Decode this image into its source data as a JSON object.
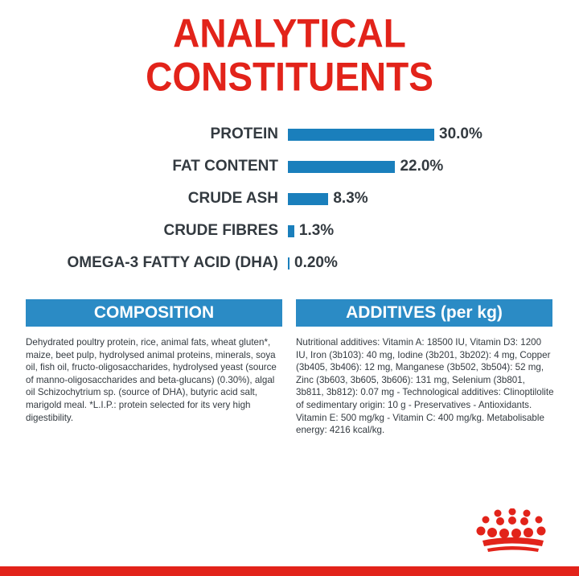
{
  "title": {
    "line1": "ANALYTICAL",
    "line2": "CONSTITUENTS"
  },
  "constituents": [
    {
      "label": "PROTEIN",
      "value": 30.0,
      "display": "30.0%"
    },
    {
      "label": "FAT CONTENT",
      "value": 22.0,
      "display": "22.0%"
    },
    {
      "label": "CRUDE ASH",
      "value": 8.3,
      "display": "8.3%"
    },
    {
      "label": "CRUDE FIBRES",
      "value": 1.3,
      "display": "1.3%"
    },
    {
      "label": "OMEGA-3 FATTY ACID (DHA)",
      "value": 0.2,
      "display": "0.20%"
    }
  ],
  "composition": {
    "heading": "COMPOSITION",
    "text": "Dehydrated poultry protein, rice, animal fats, wheat gluten*, maize, beet pulp, hydrolysed animal proteins, minerals, soya oil, fish oil, fructo-oligosaccharides, hydrolysed yeast (source of manno-oligosaccharides and beta-glucans) (0.30%), algal oil Schizochytrium sp. (source of DHA), butyric acid salt, marigold meal. *L.I.P.: protein selected for its very high digestibility."
  },
  "additives": {
    "heading": "ADDITIVES (per kg)",
    "text": "Nutritional additives: Vitamin A: 18500 IU, Vitamin D3: 1200 IU, Iron (3b103): 40 mg, Iodine (3b201, 3b202): 4 mg, Copper (3b405, 3b406): 12 mg, Manganese (3b502, 3b504): 52 mg, Zinc (3b603, 3b605, 3b606): 131 mg, Selenium (3b801, 3b811, 3b812): 0.07 mg - Technological additives: Clinoptilolite of sedimentary origin: 10 g - Preservatives - Antioxidants. Vitamin E: 500 mg/kg - Vitamin C: 400 mg/kg. Metabolisable energy: 4216 kcal/kg."
  },
  "colors": {
    "brand_red": "#e2231a",
    "bar_blue": "#1a7fbc",
    "band_blue": "#2b8bc5",
    "text_dark": "#333a40"
  },
  "icons": {
    "logo": "royal-canin-crown-icon"
  }
}
